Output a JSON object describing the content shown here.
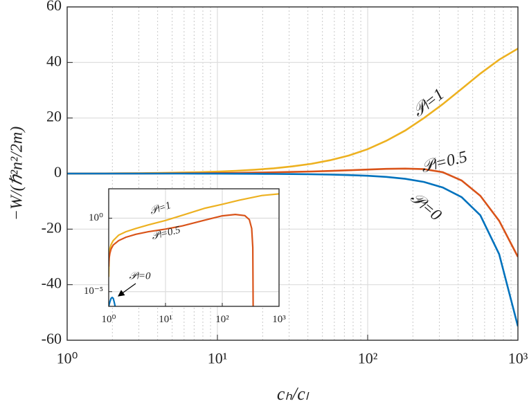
{
  "chart_data": [
    {
      "type": "line",
      "xscale": "log",
      "grid": true,
      "ylabel": "−W/(ℏ²n²/2m)",
      "xlabel": "cₕ/cₗ",
      "xlim": [
        1,
        1000
      ],
      "ylim": [
        -60,
        60
      ],
      "xticks": [
        {
          "value": 1,
          "label": "10⁰"
        },
        {
          "value": 10,
          "label": "10¹"
        },
        {
          "value": 100,
          "label": "10²"
        },
        {
          "value": 1000,
          "label": "10³"
        }
      ],
      "xminorticks": [
        2,
        3,
        4,
        5,
        6,
        7,
        8,
        9,
        20,
        30,
        40,
        50,
        60,
        70,
        80,
        90,
        200,
        300,
        400,
        500,
        600,
        700,
        800,
        900
      ],
      "yticks": [
        60,
        40,
        20,
        0,
        -20,
        -40,
        -60
      ],
      "x": [
        1,
        1.33,
        1.78,
        2.37,
        3.16,
        4.22,
        5.62,
        7.5,
        10,
        13.3,
        17.8,
        23.7,
        31.6,
        42.2,
        56.2,
        75,
        100,
        133,
        178,
        237,
        316,
        422,
        562,
        750,
        1000
      ],
      "series": [
        {
          "name": "𝒫ₗ=1",
          "color": "#EDB120",
          "values": [
            0,
            0.02,
            0.05,
            0.1,
            0.15,
            0.25,
            0.35,
            0.5,
            0.7,
            1.0,
            1.4,
            1.9,
            2.6,
            3.5,
            4.8,
            6.5,
            8.8,
            11.8,
            15.5,
            20,
            25,
            30.5,
            36,
            41,
            45
          ]
        },
        {
          "name": "𝒫ₗ=0.5",
          "color": "#D95319",
          "values": [
            0,
            0,
            0.01,
            0.02,
            0.03,
            0.05,
            0.08,
            0.12,
            0.18,
            0.25,
            0.35,
            0.45,
            0.6,
            0.75,
            0.95,
            1.2,
            1.45,
            1.7,
            1.8,
            1.6,
            0.5,
            -2.5,
            -8,
            -17,
            -30
          ]
        },
        {
          "name": "𝒫ₗ=0",
          "color": "#0072BD",
          "values": [
            0,
            0,
            0,
            0,
            0,
            0,
            -0.01,
            -0.02,
            -0.03,
            -0.05,
            -0.08,
            -0.12,
            -0.18,
            -0.26,
            -0.38,
            -0.55,
            -0.8,
            -1.2,
            -1.9,
            -3,
            -5,
            -8.5,
            -15,
            -29,
            -55
          ]
        }
      ]
    },
    {
      "type": "line",
      "xscale": "log",
      "yscale": "log",
      "grid": true,
      "xlim": [
        1,
        1000
      ],
      "ylim": [
        1e-06,
        100
      ],
      "xticks": [
        {
          "value": 1,
          "label": "10⁰"
        },
        {
          "value": 10,
          "label": "10¹"
        },
        {
          "value": 100,
          "label": "10²"
        },
        {
          "value": 1000,
          "label": "10³"
        }
      ],
      "yticks": [
        {
          "value": 1e-05,
          "label": "10⁻⁵"
        },
        {
          "value": 1,
          "label": "10⁰"
        }
      ],
      "series": [
        {
          "name": "𝒫ₗ=1",
          "color": "#EDB120",
          "x": [
            1,
            1.02,
            1.05,
            1.1,
            1.2,
            1.5,
            2,
            3,
            5,
            10,
            20,
            50,
            100,
            200,
            500,
            1000
          ],
          "values": [
            0.0001,
            0.003,
            0.008,
            0.016,
            0.03,
            0.07,
            0.12,
            0.2,
            0.35,
            0.7,
            1.6,
            4.8,
            8.8,
            17,
            35,
            45
          ]
        },
        {
          "name": "𝒫ₗ=0.5",
          "color": "#D95319",
          "x": [
            1,
            1.02,
            1.05,
            1.1,
            1.2,
            1.5,
            2,
            3,
            5,
            10,
            20,
            50,
            100,
            170,
            250,
            300,
            330,
            345,
            350
          ],
          "values": [
            0.0005,
            0.002,
            0.004,
            0.008,
            0.015,
            0.03,
            0.05,
            0.08,
            0.12,
            0.18,
            0.3,
            0.75,
            1.45,
            1.8,
            1.5,
            0.8,
            0.2,
            0.01,
            1e-06
          ]
        },
        {
          "name": "𝒫ₗ=0",
          "color": "#0072BD",
          "x": [
            1,
            1.05,
            1.1,
            1.15,
            1.2,
            1.25,
            1.3
          ],
          "values": [
            1e-06,
            2e-06,
            3.5e-06,
            4e-06,
            3.5e-06,
            2e-06,
            1e-06
          ]
        }
      ]
    }
  ]
}
